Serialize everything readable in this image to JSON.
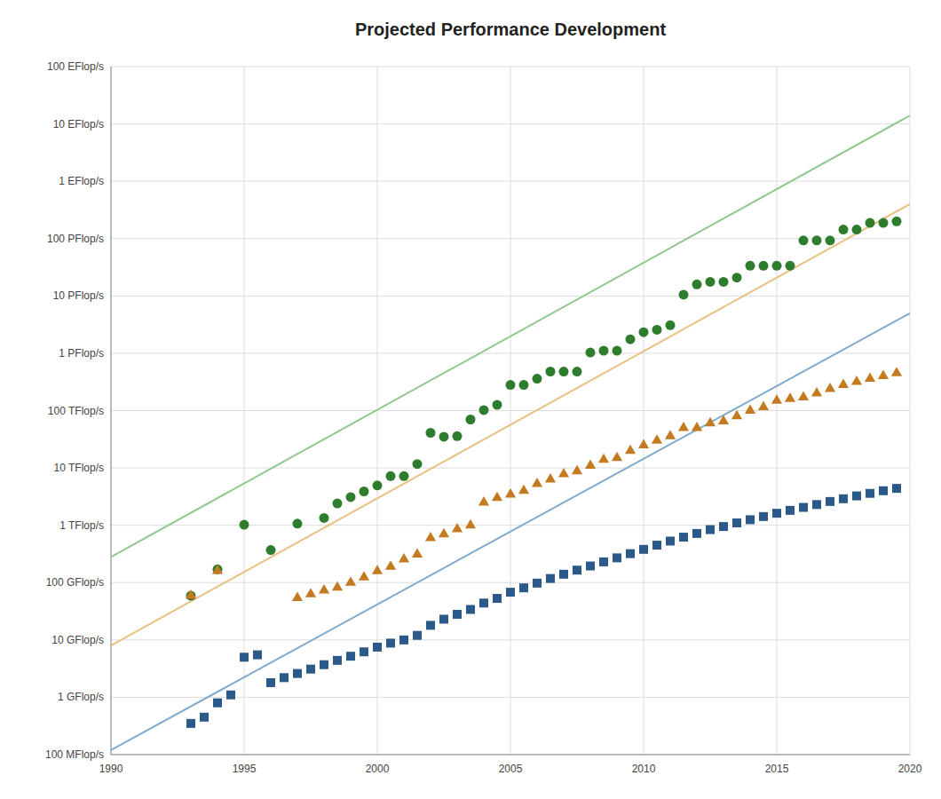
{
  "chart_data": {
    "type": "scatter",
    "title": "Projected Performance Development",
    "log": "y",
    "grid": true,
    "xlim": [
      1990,
      2020
    ],
    "xticks": [
      1990,
      1995,
      2000,
      2005,
      2010,
      2015,
      2020
    ],
    "ylim": [
      100000000.0,
      1e+20
    ],
    "yticks": [
      {
        "value": 100000000.0,
        "label": "100 MFlop/s"
      },
      {
        "value": 1000000000.0,
        "label": "1 GFlop/s"
      },
      {
        "value": 10000000000.0,
        "label": "10 GFlop/s"
      },
      {
        "value": 100000000000.0,
        "label": "100 GFlop/s"
      },
      {
        "value": 1000000000000.0,
        "label": "1 TFlop/s"
      },
      {
        "value": 10000000000000.0,
        "label": "10 TFlop/s"
      },
      {
        "value": 100000000000000.0,
        "label": "100 TFlop/s"
      },
      {
        "value": 1000000000000000.0,
        "label": "1 PFlop/s"
      },
      {
        "value": 1e+16,
        "label": "10 PFlop/s"
      },
      {
        "value": 1e+17,
        "label": "100 PFlop/s"
      },
      {
        "value": 1e+18,
        "label": "1 EFlop/s"
      },
      {
        "value": 1e+19,
        "label": "10 EFlop/s"
      },
      {
        "value": 1e+20,
        "label": "100 EFlop/s"
      }
    ],
    "series": [
      {
        "type": "line",
        "color": "#90c890",
        "x": [
          1990,
          2020
        ],
        "values": [
          280000000000.0,
          1.4e+19
        ]
      },
      {
        "type": "line",
        "color": "#e8c080",
        "x": [
          1990,
          2020
        ],
        "values": [
          8000000000.0,
          4e+17
        ]
      },
      {
        "type": "line",
        "color": "#80aace",
        "x": [
          1990,
          2020
        ],
        "values": [
          120000000.0,
          5000000000000000.0
        ]
      },
      {
        "type": "scatter",
        "color": "#2e7d2e",
        "marker": "circle",
        "x": [
          1993,
          1994,
          1995,
          1996,
          1997,
          1998,
          1998.5,
          1999,
          1999.5,
          2000,
          2000.5,
          2001,
          2001.5,
          2002,
          2002.5,
          2003,
          2003.5,
          2004,
          2004.5,
          2005,
          2005.5,
          2006,
          2006.5,
          2007,
          2007.5,
          2008,
          2008.5,
          2009,
          2009.5,
          2010,
          2010.5,
          2011,
          2011.5,
          2012,
          2012.5,
          2013,
          2013.5,
          2014,
          2014.5,
          2015,
          2015.5,
          2016,
          2016.5,
          2017,
          2017.5,
          2018,
          2018.5,
          2019,
          2019.5
        ],
        "values": [
          59000000000.0,
          170000000000.0,
          1020000000000.0,
          370000000000.0,
          1070000000000.0,
          1340000000000.0,
          2400000000000.0,
          3100000000000.0,
          3900000000000.0,
          4940000000000.0,
          7200000000000.0,
          7200000000000.0,
          11700000000000.0,
          41000000000000.0,
          35000000000000.0,
          35800000000000.0,
          70000000000000.0,
          102000000000000.0,
          126000000000000.0,
          280000000000000.0,
          280000000000000.0,
          360000000000000.0,
          480000000000000.0,
          478000000000000.0,
          478000000000000.0,
          1030000000000000.0,
          1110000000000000.0,
          1105000000000000.0,
          1750000000000000.0,
          2330000000000000.0,
          2570000000000000.0,
          3090000000000000.0,
          1.05e+16,
          1.59e+16,
          1.76e+16,
          1.76e+16,
          2.09e+16,
          3.36e+16,
          3.36e+16,
          3.36e+16,
          3.36e+16,
          9.3e+16,
          9.3e+16,
          9.3e+16,
          1.44e+17,
          1.44e+17,
          1.88e+17,
          1.88e+17,
          2e+17
        ]
      },
      {
        "type": "scatter",
        "color": "#c47a20",
        "marker": "triangle",
        "x": [
          1993,
          1994,
          1997,
          1997.5,
          1998,
          1998.5,
          1999,
          1999.5,
          2000,
          2000.5,
          2001,
          2001.5,
          2002,
          2002.5,
          2003,
          2003.5,
          2004,
          2004.5,
          2005,
          2005.5,
          2006,
          2006.5,
          2007,
          2007.5,
          2008,
          2008.5,
          2009,
          2009.5,
          2010,
          2010.5,
          2011,
          2011.5,
          2012,
          2012.5,
          2013,
          2013.5,
          2014,
          2014.5,
          2015,
          2015.5,
          2016,
          2016.5,
          2017,
          2017.5,
          2018,
          2018.5,
          2019,
          2019.5
        ],
        "values": [
          59000000000.0,
          160000000000.0,
          54000000000.0,
          63000000000.0,
          73000000000.0,
          82000000000.0,
          100000000000.0,
          124000000000.0,
          159000000000.0,
          190000000000.0,
          256000000000.0,
          310000000000.0,
          600000000000.0,
          700000000000.0,
          860000000000.0,
          1000000000000.0,
          2500000000000.0,
          3000000000000.0,
          3450000000000.0,
          4000000000000.0,
          5300000000000.0,
          6300000000000.0,
          7800000000000.0,
          8800000000000.0,
          11000000000000.0,
          14000000000000.0,
          15000000000000.0,
          20000000000000.0,
          25000000000000.0,
          30000000000000.0,
          36000000000000.0,
          50000000000000.0,
          50000000000000.0,
          60000000000000.0,
          65000000000000.0,
          80000000000000.0,
          100000000000000.0,
          115000000000000.0,
          150000000000000.0,
          160000000000000.0,
          170000000000000.0,
          200000000000000.0,
          240000000000000.0,
          280000000000000.0,
          320000000000000.0,
          360000000000000.0,
          400000000000000.0,
          450000000000000.0
        ]
      },
      {
        "type": "scatter",
        "color": "#2b5a8a",
        "marker": "square",
        "x": [
          1993,
          1993.5,
          1994,
          1994.5,
          1995,
          1995.5,
          1996,
          1996.5,
          1997,
          1997.5,
          1998,
          1998.5,
          1999,
          1999.5,
          2000,
          2000.5,
          2001,
          2001.5,
          2002,
          2002.5,
          2003,
          2003.5,
          2004,
          2004.5,
          2005,
          2005.5,
          2006,
          2006.5,
          2007,
          2007.5,
          2008,
          2008.5,
          2009,
          2009.5,
          2010,
          2010.5,
          2011,
          2011.5,
          2012,
          2012.5,
          2013,
          2013.5,
          2014,
          2014.5,
          2015,
          2015.5,
          2016,
          2016.5,
          2017,
          2017.5,
          2018,
          2018.5,
          2019,
          2019.5
        ],
        "values": [
          350000000.0,
          450000000.0,
          800000000.0,
          1100000000.0,
          5000000000.0,
          5500000000.0,
          1800000000.0,
          2200000000.0,
          2600000000.0,
          3100000000.0,
          3700000000.0,
          4400000000.0,
          5200000000.0,
          6200000000.0,
          7500000000.0,
          8800000000.0,
          10000000000.0,
          12000000000.0,
          18000000000.0,
          23000000000.0,
          28000000000.0,
          34000000000.0,
          44000000000.0,
          53000000000.0,
          68000000000.0,
          81000000000.0,
          98000000000.0,
          118000000000.0,
          140000000000.0,
          165000000000.0,
          195000000000.0,
          230000000000.0,
          270000000000.0,
          320000000000.0,
          380000000000.0,
          450000000000.0,
          530000000000.0,
          620000000000.0,
          720000000000.0,
          840000000000.0,
          950000000000.0,
          1100000000000.0,
          1250000000000.0,
          1420000000000.0,
          1620000000000.0,
          1820000000000.0,
          2050000000000.0,
          2300000000000.0,
          2600000000000.0,
          2900000000000.0,
          3250000000000.0,
          3600000000000.0,
          4000000000000.0,
          4400000000000.0
        ]
      }
    ]
  }
}
